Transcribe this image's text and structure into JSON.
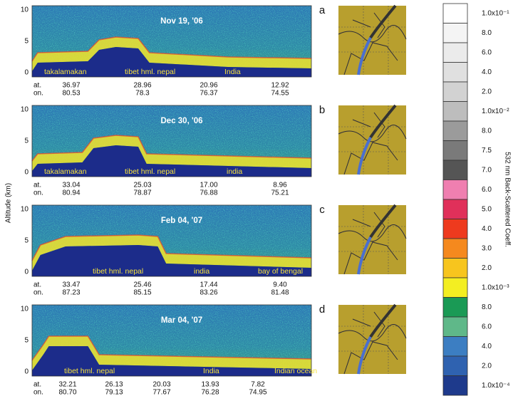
{
  "figure": {
    "y_axis_title": "Altitude (km)",
    "y_ticks": [
      "10",
      "5",
      "0"
    ],
    "row_labels": [
      "at.",
      "on."
    ],
    "panels": [
      {
        "letter": "a",
        "date": "Nov 19, '06",
        "regions": [
          "takalamakan",
          "tibet hml. nepal",
          "India"
        ],
        "lat": [
          "36.97",
          "28.96",
          "20.96",
          "12.92"
        ],
        "lon": [
          "80.53",
          "78.3",
          "76.37",
          "74.55"
        ]
      },
      {
        "letter": "b",
        "date": "Dec 30, '06",
        "regions": [
          "takalamakan",
          "tibet hml. nepal",
          "india"
        ],
        "lat": [
          "33.04",
          "25.03",
          "17.00",
          "8.96"
        ],
        "lon": [
          "80.94",
          "78.87",
          "76.88",
          "75.21"
        ]
      },
      {
        "letter": "c",
        "date": "Feb 04, '07",
        "regions": [
          "tibet hml. nepal",
          "india",
          "bay of bengal"
        ],
        "lat": [
          "33.47",
          "25.46",
          "17.44",
          "9.40"
        ],
        "lon": [
          "87.23",
          "85.15",
          "83.26",
          "81.48"
        ]
      },
      {
        "letter": "d",
        "date": "Mar 04, '07",
        "regions": [
          "tibet hml. nepal",
          "India",
          "Indian ocean"
        ],
        "lat": [
          "32.21",
          "26.13",
          "20.03",
          "13.93",
          "7.82"
        ],
        "lon": [
          "80.70",
          "79.13",
          "77.67",
          "76.28",
          "74.95"
        ]
      }
    ],
    "colorbar": {
      "title": "532 nm Back-Scattered Coeff.",
      "segments": [
        {
          "label": "1.0x10⁻¹",
          "color": "#ffffff"
        },
        {
          "label": "8.0",
          "color": "#f4f4f4"
        },
        {
          "label": "6.0",
          "color": "#ebebeb"
        },
        {
          "label": "4.0",
          "color": "#e0e0e0"
        },
        {
          "label": "2.0",
          "color": "#d2d2d2"
        },
        {
          "label": "1.0x10⁻²",
          "color": "#bdbdbd"
        },
        {
          "label": "8.0",
          "color": "#9b9b9b"
        },
        {
          "label": "7.5",
          "color": "#7a7a7a"
        },
        {
          "label": "7.0",
          "color": "#555555"
        },
        {
          "label": "6.0",
          "color": "#ef7fb0"
        },
        {
          "label": "5.0",
          "color": "#e0305a"
        },
        {
          "label": "4.0",
          "color": "#ee3a1e"
        },
        {
          "label": "3.0",
          "color": "#f5891e"
        },
        {
          "label": "2.0",
          "color": "#f7c51e"
        },
        {
          "label": "1.0x10⁻³",
          "color": "#f3ee22"
        },
        {
          "label": "8.0",
          "color": "#1a9a55"
        },
        {
          "label": "6.0",
          "color": "#5fb889"
        },
        {
          "label": "4.0",
          "color": "#3c7ec2"
        },
        {
          "label": "2.0",
          "color": "#2f62b0"
        },
        {
          "label": "1.0x10⁻⁴",
          "color": "#1e3a8c"
        }
      ]
    }
  }
}
